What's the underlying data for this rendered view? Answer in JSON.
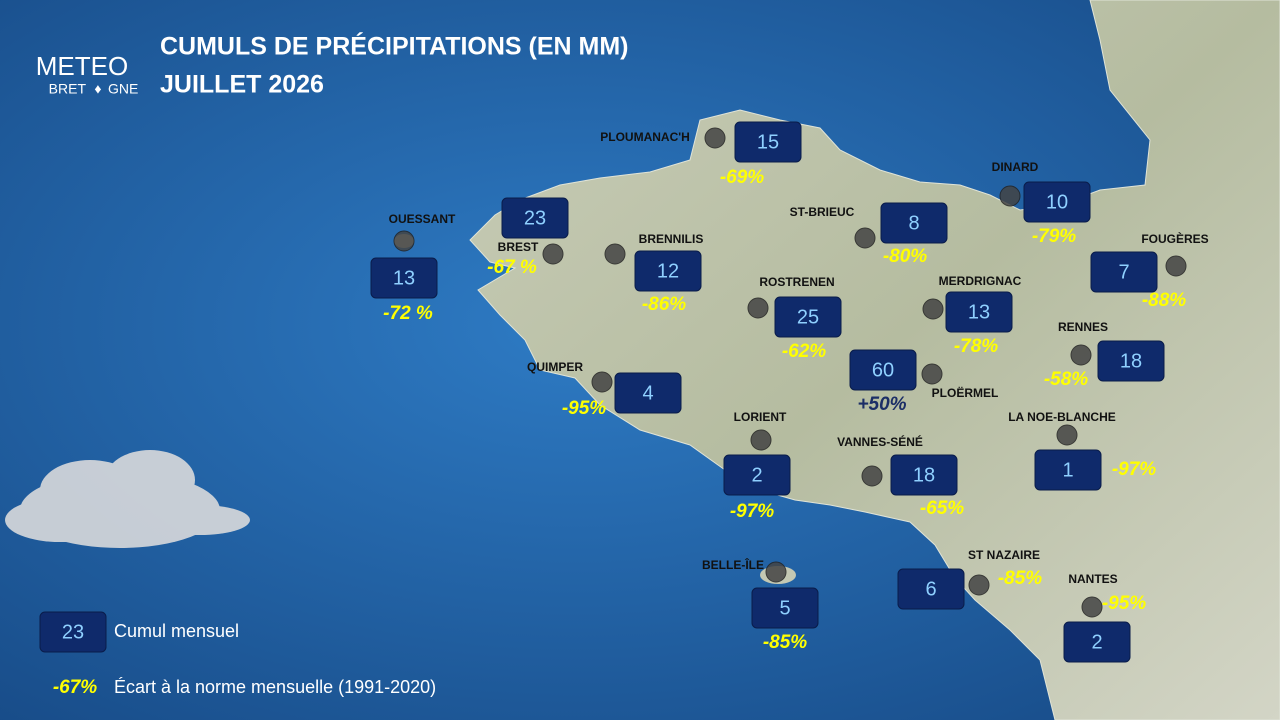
{
  "header": {
    "logo": [
      "METEO",
      "BRET",
      "GNE"
    ],
    "title": "CUMULS DE PRÉCIPITATIONS (EN MM)",
    "subtitle": "JUILLET 2026"
  },
  "stations": [
    {
      "name": "PLOUMANAC'H",
      "cumul": "15",
      "ecart": "-69%"
    },
    {
      "name": "OUESSANT",
      "cumul": "13",
      "ecart": "-72 %"
    },
    {
      "name": "BREST",
      "cumul": "23",
      "ecart": "-67 %"
    },
    {
      "name": "BRENNILIS",
      "cumul": "12",
      "ecart": "-86%"
    },
    {
      "name": "ST-BRIEUC",
      "cumul": "8",
      "ecart": "-80%"
    },
    {
      "name": "DINARD",
      "cumul": "10",
      "ecart": "-79%"
    },
    {
      "name": "FOUGÈRES",
      "cumul": "7",
      "ecart": "-88%"
    },
    {
      "name": "ROSTRENEN",
      "cumul": "25",
      "ecart": "-62%"
    },
    {
      "name": "MERDRIGNAC",
      "cumul": "13",
      "ecart": "-78%"
    },
    {
      "name": "RENNES",
      "cumul": "18",
      "ecart": "-58%"
    },
    {
      "name": "PLOËRMEL",
      "cumul": "60",
      "ecart": "+50%"
    },
    {
      "name": "QUIMPER",
      "cumul": "4",
      "ecart": "-95%"
    },
    {
      "name": "LORIENT",
      "cumul": "2",
      "ecart": "-97%"
    },
    {
      "name": "VANNES-SÉNÉ",
      "cumul": "18",
      "ecart": "-65%"
    },
    {
      "name": "LA NOE-BLANCHE",
      "cumul": "1",
      "ecart": "-97%"
    },
    {
      "name": "BELLE-ÎLE",
      "cumul": "5",
      "ecart": "-85%"
    },
    {
      "name": "ST NAZAIRE",
      "cumul": "6",
      "ecart": "-85%"
    },
    {
      "name": "NANTES",
      "cumul": "2",
      "ecart": "-95%"
    }
  ],
  "legend": {
    "cumul_sample": "23",
    "cumul_label": "Cumul mensuel",
    "ecart_sample": "-67%",
    "ecart_label": "Écart à la norme mensuelle (1991-2020)"
  }
}
